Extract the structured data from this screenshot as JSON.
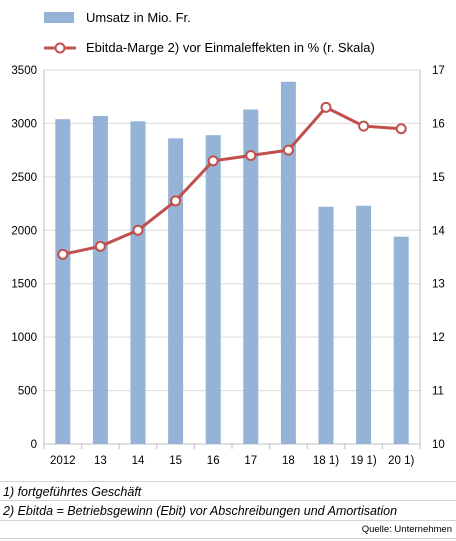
{
  "chart_data": {
    "type": "bar",
    "categories": [
      "2012",
      "13",
      "14",
      "15",
      "16",
      "17",
      "18",
      "18 1)",
      "19 1)",
      "20 1)"
    ],
    "series": [
      {
        "name": "Umsatz in Mio. Fr.",
        "type": "bar",
        "axis": "left",
        "color": "#95b3d7",
        "values": [
          3040,
          3070,
          3020,
          2860,
          2890,
          3130,
          3390,
          2220,
          2230,
          1940
        ]
      },
      {
        "name": "Ebitda-Marge 2) vor Einmaleffekten in % (r. Skala)",
        "type": "line",
        "axis": "right",
        "color": "#c0504d",
        "values": [
          13.55,
          13.7,
          14.0,
          14.55,
          15.3,
          15.4,
          15.5,
          16.3,
          15.95,
          15.9
        ]
      }
    ],
    "y_left": {
      "min": 0,
      "max": 3500,
      "step": 500,
      "ticks": [
        "0",
        "500",
        "1000",
        "1500",
        "2000",
        "2500",
        "3000",
        "3500"
      ]
    },
    "y_right": {
      "min": 10,
      "max": 17,
      "step": 1,
      "ticks": [
        "10",
        "11",
        "12",
        "13",
        "14",
        "15",
        "16",
        "17"
      ]
    },
    "grid": true,
    "legend_position": "top-left"
  },
  "footnotes": [
    "1) fortgeführtes Geschäft",
    "2) Ebitda = Betriebsgewinn (Ebit) vor Abschreibungen und Amortisation"
  ],
  "source": "Quelle: Unternehmen"
}
